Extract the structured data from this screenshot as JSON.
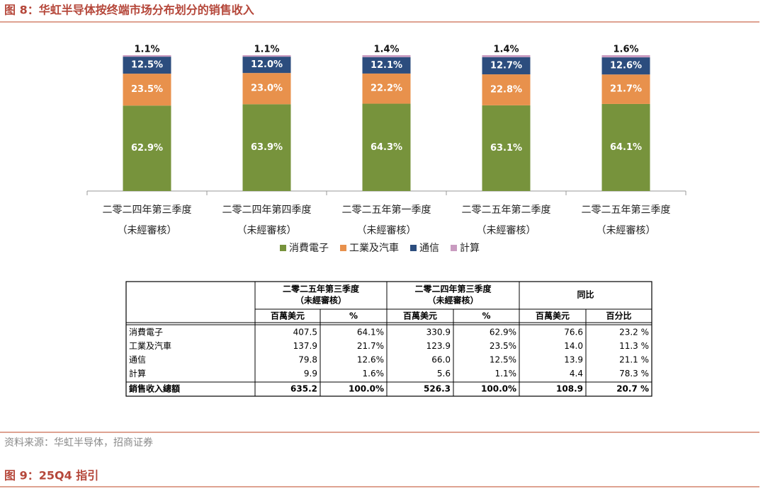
{
  "header": {
    "title": "图 8：华虹半导体按终端市场分布划分的销售收入"
  },
  "chart_data": {
    "type": "bar",
    "stacked": true,
    "categories": [
      [
        "二零二四年第三季度",
        "（未經審核）"
      ],
      [
        "二零二四年第四季度",
        "（未經審核）"
      ],
      [
        "二零二五年第一季度",
        "（未經審核）"
      ],
      [
        "二零二五年第二季度",
        "（未經審核）"
      ],
      [
        "二零二五年第三季度",
        "（未經審核）"
      ]
    ],
    "series": [
      {
        "name": "消費電子",
        "color": "#77933c",
        "values": [
          62.9,
          63.9,
          64.3,
          63.1,
          64.1
        ],
        "value_labels": [
          "62.9%",
          "63.9%",
          "64.3%",
          "63.1%",
          "64.1%"
        ]
      },
      {
        "name": "工業及汽車",
        "color": "#e8914c",
        "values": [
          23.5,
          23.0,
          22.2,
          22.8,
          21.7
        ],
        "value_labels": [
          "23.5%",
          "23.0%",
          "22.2%",
          "22.8%",
          "21.7%"
        ]
      },
      {
        "name": "通信",
        "color": "#2c4d7e",
        "values": [
          12.5,
          12.0,
          12.1,
          12.7,
          12.6
        ],
        "value_labels": [
          "12.5%",
          "12.0%",
          "12.1%",
          "12.7%",
          "12.6%"
        ]
      },
      {
        "name": "計算",
        "color": "#c99bc0",
        "values": [
          1.1,
          1.1,
          1.4,
          1.4,
          1.6
        ],
        "value_labels": [
          "1.1%",
          "1.1%",
          "1.4%",
          "1.4%",
          "1.6%"
        ]
      }
    ]
  },
  "table": {
    "groups": [
      [
        "二零二五年第三季度",
        "（未經審核）"
      ],
      [
        "二零二四年第三季度",
        "（未經審核）"
      ],
      [
        "同比"
      ]
    ],
    "units": [
      "百萬美元",
      "%",
      "百萬美元",
      "%",
      "百萬美元",
      "百分比"
    ],
    "rows": [
      [
        "消費電子",
        "407.5",
        "64.1%",
        "330.9",
        "62.9%",
        "76.6",
        "23.2 %"
      ],
      [
        "工業及汽車",
        "137.9",
        "21.7%",
        "123.9",
        "23.5%",
        "14.0",
        "11.3 %"
      ],
      [
        "通信",
        "79.8",
        "12.6%",
        "66.0",
        "12.5%",
        "13.9",
        "21.1 %"
      ],
      [
        "計算",
        "9.9",
        "1.6%",
        "5.6",
        "1.1%",
        "4.4",
        "78.3 %"
      ]
    ],
    "total": [
      "銷售收入總額",
      "635.2",
      "100.0%",
      "526.3",
      "100.0%",
      "108.9",
      "20.7 %"
    ]
  },
  "source": "资料来源：华虹半导体，招商证券",
  "next_header": {
    "title": "图 9：25Q4 指引"
  }
}
